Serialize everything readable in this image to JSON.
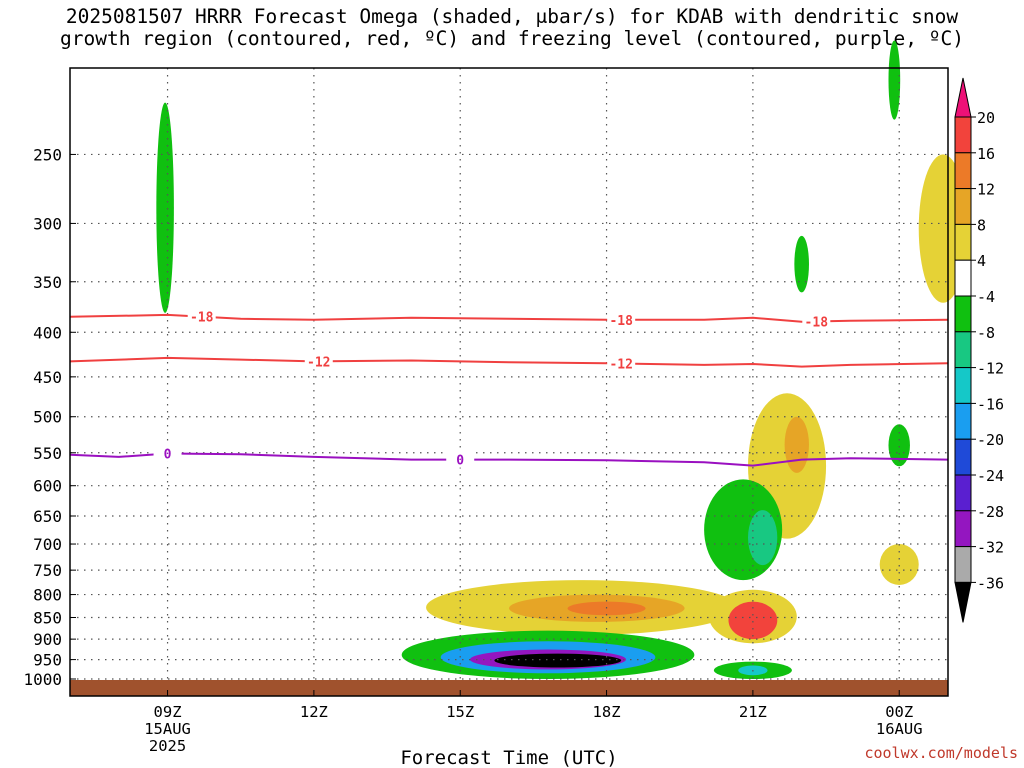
{
  "title_line1": "2025081507 HRRR Forecast Omega (shaded, μbar/s) for KDAB with dendritic snow",
  "title_line2": "growth region (contoured, red, ºC) and freezing level (contoured, purple, ºC)",
  "credit": "coolwx.com/models",
  "chart_data": {
    "type": "heatmap",
    "title": "2025081507 HRRR Forecast Omega (shaded, μbar/s) for KDAB with dendritic snow growth region (contoured, red, ºC) and freezing level (contoured, purple, ºC)",
    "xlabel": "Forecast Time (UTC)",
    "ylabel": "",
    "x_range_hours": [
      7,
      25
    ],
    "y_scale": "log-pressure",
    "y_range_hpa": [
      1000,
      200
    ],
    "grid": true,
    "x_ticks": [
      {
        "hour": 9,
        "lines": [
          "09Z",
          "15AUG",
          "2025"
        ]
      },
      {
        "hour": 12,
        "lines": [
          "12Z"
        ]
      },
      {
        "hour": 15,
        "lines": [
          "15Z"
        ]
      },
      {
        "hour": 18,
        "lines": [
          "18Z"
        ]
      },
      {
        "hour": 21,
        "lines": [
          "21Z"
        ]
      },
      {
        "hour": 24,
        "lines": [
          "00Z",
          "16AUG"
        ]
      }
    ],
    "y_ticks": [
      250,
      300,
      350,
      400,
      450,
      500,
      550,
      600,
      650,
      700,
      750,
      800,
      850,
      900,
      950,
      1000
    ],
    "colorbar": {
      "labels": [
        "20",
        "16",
        "12",
        "8",
        "4",
        "-4",
        "-8",
        "-12",
        "-16",
        "-20",
        "-24",
        "-28",
        "-32",
        "-36"
      ],
      "colors": [
        "#ee1177",
        "#f2433c",
        "#ec7a28",
        "#e6a526",
        "#e5d236",
        "#ffffff",
        "#10c010",
        "#18c882",
        "#15c8c8",
        "#1a9ef0",
        "#1f4ad8",
        "#5a1fd0",
        "#9416c0",
        "#aaaaaa",
        "#000000"
      ]
    },
    "contours": [
      {
        "name": "dgz_-18",
        "color": "#f04040",
        "label": "-18",
        "points": [
          [
            7,
            384
          ],
          [
            9,
            382
          ],
          [
            10.5,
            386
          ],
          [
            12,
            387
          ],
          [
            14,
            385
          ],
          [
            16,
            386
          ],
          [
            18,
            387
          ],
          [
            20,
            387
          ],
          [
            21,
            385
          ],
          [
            22,
            389
          ],
          [
            23,
            388
          ],
          [
            25,
            387
          ]
        ],
        "label_at_hours": [
          9.7,
          18.3,
          22.3
        ]
      },
      {
        "name": "dgz_-12",
        "color": "#f04040",
        "label": "-12",
        "points": [
          [
            7,
            432
          ],
          [
            9,
            428
          ],
          [
            10.5,
            430
          ],
          [
            12,
            432
          ],
          [
            14,
            431
          ],
          [
            16,
            433
          ],
          [
            18,
            434
          ],
          [
            20,
            436
          ],
          [
            21,
            435
          ],
          [
            22,
            438
          ],
          [
            23,
            436
          ],
          [
            25,
            434
          ]
        ],
        "label_at_hours": [
          12.1,
          18.3
        ]
      },
      {
        "name": "freezing_0",
        "color": "#9a10c0",
        "label": "0",
        "points": [
          [
            7,
            553
          ],
          [
            8,
            556
          ],
          [
            9,
            551
          ],
          [
            10.5,
            552
          ],
          [
            12,
            556
          ],
          [
            14,
            560
          ],
          [
            16,
            560
          ],
          [
            18,
            561
          ],
          [
            20,
            564
          ],
          [
            21,
            569
          ],
          [
            22,
            560
          ],
          [
            23,
            558
          ],
          [
            25,
            560
          ]
        ],
        "label_at_hours": [
          9.0,
          15.0
        ]
      }
    ],
    "omega_regions": [
      {
        "value": -6,
        "hours": 8.95,
        "hw": 0.18,
        "p_top": 218,
        "p_bot": 380
      },
      {
        "value": -6,
        "hours": 23.9,
        "hw": 0.12,
        "p_top": 185,
        "p_bot": 228
      },
      {
        "value": -6,
        "hours": 22.0,
        "hw": 0.15,
        "p_top": 310,
        "p_bot": 360
      },
      {
        "value": -6,
        "hours": 24.0,
        "hw": 0.22,
        "p_top": 510,
        "p_bot": 570
      },
      {
        "value": 6,
        "hours": 24.9,
        "hw": 0.5,
        "p_top": 250,
        "p_bot": 370
      },
      {
        "value": 6,
        "hours": 21.7,
        "hw": 0.8,
        "p_top": 470,
        "p_bot": 690
      },
      {
        "value": 10,
        "hours": 21.9,
        "hw": 0.25,
        "p_top": 500,
        "p_bot": 580
      },
      {
        "value": 6,
        "hours": 24.0,
        "hw": 0.4,
        "p_top": 700,
        "p_bot": 780
      },
      {
        "value": -6,
        "hours": 20.8,
        "hw": 0.8,
        "p_top": 590,
        "p_bot": 770
      },
      {
        "value": -10,
        "hours": 21.2,
        "hw": 0.3,
        "p_top": 640,
        "p_bot": 740
      },
      {
        "value": 6,
        "hours": 17.5,
        "hw": 3.2,
        "p_top": 770,
        "p_bot": 890
      },
      {
        "value": 10,
        "hours": 17.8,
        "hw": 1.8,
        "p_top": 800,
        "p_bot": 860
      },
      {
        "value": 14,
        "hours": 18.0,
        "hw": 0.8,
        "p_top": 815,
        "p_bot": 845
      },
      {
        "value": 6,
        "hours": 21.0,
        "hw": 0.9,
        "p_top": 790,
        "p_bot": 910
      },
      {
        "value": 18,
        "hours": 21.0,
        "hw": 0.5,
        "p_top": 815,
        "p_bot": 900
      },
      {
        "value": -6,
        "hours": 16.8,
        "hw": 3.0,
        "p_top": 880,
        "p_bot": 1000
      },
      {
        "value": -16,
        "hours": 16.8,
        "hw": 2.2,
        "p_top": 905,
        "p_bot": 985
      },
      {
        "value": -28,
        "hours": 16.8,
        "hw": 1.6,
        "p_top": 925,
        "p_bot": 975
      },
      {
        "value": -36,
        "hours": 17.0,
        "hw": 1.3,
        "p_top": 935,
        "p_bot": 970
      },
      {
        "value": -6,
        "hours": 21.0,
        "hw": 0.8,
        "p_top": 955,
        "p_bot": 1000
      },
      {
        "value": -12,
        "hours": 21.0,
        "hw": 0.3,
        "p_top": 965,
        "p_bot": 990
      }
    ]
  }
}
